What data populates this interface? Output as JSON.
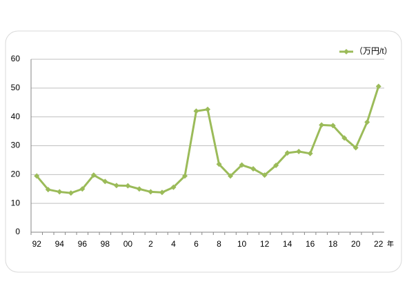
{
  "chart_data": {
    "type": "line",
    "categories": [
      "92",
      null,
      "94",
      null,
      "96",
      null,
      "98",
      null,
      "00",
      null,
      "2",
      null,
      "4",
      null,
      "6",
      null,
      "8",
      null,
      "10",
      null,
      "12",
      null,
      "14",
      null,
      "16",
      null,
      "18",
      null,
      "20",
      null,
      "22"
    ],
    "x_unit": "年",
    "series": [
      {
        "name": "（万円/t）",
        "color": "#9bbb59",
        "values": [
          19.5,
          14.8,
          14.0,
          13.6,
          15.0,
          19.8,
          17.6,
          16.2,
          16.1,
          15.0,
          14.0,
          13.8,
          15.6,
          19.5,
          42.0,
          42.6,
          23.6,
          19.5,
          23.3,
          22.0,
          19.8,
          23.2,
          27.5,
          28.0,
          27.3,
          37.2,
          37.0,
          32.7,
          29.3,
          38.2,
          50.6
        ]
      }
    ],
    "ylim": [
      0,
      60
    ],
    "yticks": [
      0,
      10,
      20,
      30,
      40,
      50,
      60
    ],
    "grid": true,
    "legend": "top-right"
  }
}
